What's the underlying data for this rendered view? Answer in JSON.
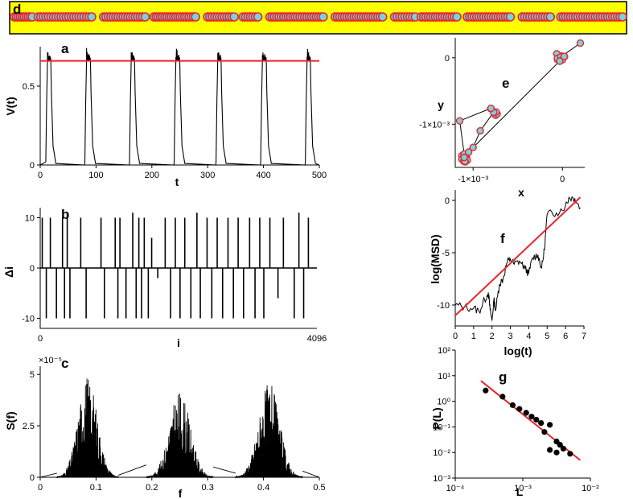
{
  "colors": {
    "fit_line": "#e8262a",
    "trace": "#000000",
    "point_fill": "#7ccfe0",
    "point_edge": "#e8262a",
    "banner_bg": "#ffff00"
  },
  "chart_data": [
    {
      "id": "d",
      "type": "scatter",
      "panel_label": "d",
      "title": "",
      "description_series": "binary sequence of spikes along a strip",
      "xlim": [
        0,
        4096
      ],
      "clusters": [
        [
          0,
          120,
          10
        ],
        [
          160,
          520,
          22
        ],
        [
          600,
          880,
          18
        ],
        [
          940,
          1220,
          20
        ],
        [
          1300,
          1480,
          12
        ],
        [
          1540,
          1640,
          7
        ],
        [
          1720,
          2080,
          24
        ],
        [
          2160,
          2480,
          21
        ],
        [
          2560,
          2700,
          9
        ],
        [
          2740,
          2980,
          16
        ],
        [
          3050,
          3340,
          19
        ],
        [
          3420,
          3610,
          12
        ],
        [
          3680,
          4096,
          26
        ]
      ]
    },
    {
      "id": "a",
      "type": "line",
      "panel_label": "a",
      "xlabel": "t",
      "ylabel": "V(t)",
      "xlim": [
        0,
        500
      ],
      "ylim": [
        0,
        0.75
      ],
      "xticks": [
        "0",
        "100",
        "200",
        "300",
        "400",
        "500"
      ],
      "yticks": [
        "0",
        "0.5"
      ],
      "threshold": 0.66,
      "spike_starts": [
        10,
        80,
        160,
        240,
        315,
        395,
        475
      ],
      "spike_width": 10,
      "plateau": 0.66
    },
    {
      "id": "b",
      "type": "bar",
      "panel_label": "b",
      "xlabel": "i",
      "ylabel": "Δi",
      "xlim": [
        0,
        4096
      ],
      "ylim": [
        -12,
        12
      ],
      "xticks": [
        "0",
        "4096"
      ],
      "yticks": [
        "10",
        "0",
        "-10"
      ],
      "spike_positions": [
        30,
        90,
        150,
        240,
        330,
        360,
        400,
        440,
        600,
        680,
        900,
        950,
        1110,
        1150,
        1180,
        1270,
        1370,
        1420,
        1460,
        1500,
        1540,
        1600,
        1650,
        1740,
        1850,
        1930,
        2000,
        2070,
        2140,
        2230,
        2320,
        2370,
        2470,
        2540,
        2620,
        2700,
        2780,
        2860,
        2930,
        3010,
        3100,
        3180,
        3250,
        3310,
        3400,
        3520,
        3600,
        3760,
        3830,
        3900,
        3970
      ],
      "spike_values": [
        10,
        -10,
        10,
        -10,
        10,
        -10,
        11,
        -10,
        10,
        -10,
        10,
        -10,
        10,
        -10,
        10,
        -10,
        11,
        -10,
        10,
        -10,
        10,
        -10,
        6,
        -2,
        10,
        -10,
        10,
        -10,
        10,
        -10,
        11,
        -10,
        10,
        -10,
        10,
        -10,
        10,
        -10,
        10,
        -10,
        10,
        -10,
        10,
        -10,
        10,
        -6,
        10,
        -10,
        11,
        -10,
        10
      ]
    },
    {
      "id": "c",
      "type": "area",
      "panel_label": "c",
      "xlabel": "f",
      "ylabel": "S(f)",
      "xlim": [
        0,
        0.5
      ],
      "ylim": [
        0,
        5.4e-05
      ],
      "xticks": [
        "0",
        "0.1",
        "0.2",
        "0.3",
        "0.4",
        "0.5"
      ],
      "yticks": [
        "0",
        "2.5",
        "5"
      ],
      "y_exponent_label": "S(f) ×10^-5",
      "lobes": [
        {
          "start": 0.03,
          "end": 0.14,
          "peak": 5e-05
        },
        {
          "start": 0.19,
          "end": 0.31,
          "peak": 4.2e-05
        },
        {
          "start": 0.35,
          "end": 0.47,
          "peak": 4.6e-05
        }
      ]
    },
    {
      "id": "e",
      "type": "scatter",
      "panel_label": "e",
      "xlabel": "x",
      "ylabel": "y",
      "xticks": [
        "-1×10⁻³",
        "0"
      ],
      "yticks": [
        "0",
        "-1×10⁻³"
      ],
      "xlim": [
        -0.0012,
        0.00025
      ],
      "ylim": [
        -0.00165,
        0.0003
      ],
      "points": [
        [
          0.0002,
          0.00022
        ],
        [
          -2e-05,
          1e-05
        ],
        [
          0.0,
          -3e-05
        ],
        [
          2e-05,
          2e-05
        ],
        [
          -3e-05,
          -5e-05
        ],
        [
          -0.00077,
          -0.00082
        ],
        [
          -0.0008,
          -0.00076
        ],
        [
          -0.00092,
          -0.0011
        ],
        [
          -0.00115,
          -0.00095
        ],
        [
          -0.0011,
          -0.00145
        ],
        [
          -0.0011,
          -0.0015
        ],
        [
          -0.00105,
          -0.00142
        ],
        [
          -0.001,
          -0.00135
        ]
      ]
    },
    {
      "id": "f",
      "type": "line",
      "panel_label": "f",
      "xlabel": "log(t)",
      "ylabel": "log(MSD)",
      "xlim": [
        0,
        7
      ],
      "ylim": [
        -12,
        1
      ],
      "xticks": [
        "0",
        "1",
        "2",
        "3",
        "4",
        "5",
        "6",
        "7"
      ],
      "yticks": [
        "0",
        "-5",
        "-10"
      ],
      "fit": {
        "x": [
          0,
          6.8
        ],
        "y": [
          -11,
          0.3
        ]
      },
      "trace_x": [
        0,
        0.5,
        1.0,
        1.3,
        1.6,
        1.8,
        1.9,
        2.0,
        2.1,
        2.2,
        2.4,
        2.6,
        2.8,
        3.0,
        3.2,
        3.5,
        3.8,
        4.0,
        4.2,
        4.5,
        4.7,
        4.85,
        5.0,
        5.5,
        6.0,
        6.2,
        6.5,
        6.8
      ],
      "trace_y": [
        -10,
        -10.2,
        -10.3,
        -10.6,
        -9.5,
        -8.8,
        -10.5,
        -11.5,
        -9.5,
        -10.5,
        -8.0,
        -7.5,
        -6.0,
        -5.6,
        -6.1,
        -5.8,
        -6.5,
        -7.0,
        -5.5,
        -5.2,
        -6.5,
        -4.7,
        -1.3,
        -1.2,
        -0.5,
        0.3,
        0.2,
        -0.7
      ]
    },
    {
      "id": "g",
      "type": "scatter",
      "panel_label": "g",
      "xlabel": "L",
      "ylabel": "P(L)",
      "xlim": [
        -4,
        -2
      ],
      "ylim": [
        -3,
        2
      ],
      "xticks": [
        "10⁻⁴",
        "10⁻³",
        "10⁻²"
      ],
      "yticks": [
        "10²",
        "10¹",
        "10⁰",
        "10⁻¹",
        "10⁻²",
        "10⁻³"
      ],
      "fit": {
        "x": [
          -3.62,
          -2.15
        ],
        "y": [
          0.8,
          -2.3
        ]
      },
      "points": [
        [
          -3.55,
          0.42
        ],
        [
          -3.3,
          0.18
        ],
        [
          -3.15,
          -0.15
        ],
        [
          -3.05,
          -0.3
        ],
        [
          -2.95,
          -0.45
        ],
        [
          -2.87,
          -0.6
        ],
        [
          -2.8,
          -0.72
        ],
        [
          -2.73,
          -0.85
        ],
        [
          -2.6,
          -0.92
        ],
        [
          -2.68,
          -1.2
        ],
        [
          -2.5,
          -1.57
        ],
        [
          -2.6,
          -1.9
        ],
        [
          -2.45,
          -1.7
        ],
        [
          -2.5,
          -2.0
        ],
        [
          -2.4,
          -1.85
        ],
        [
          -2.3,
          -2.05
        ]
      ]
    }
  ]
}
